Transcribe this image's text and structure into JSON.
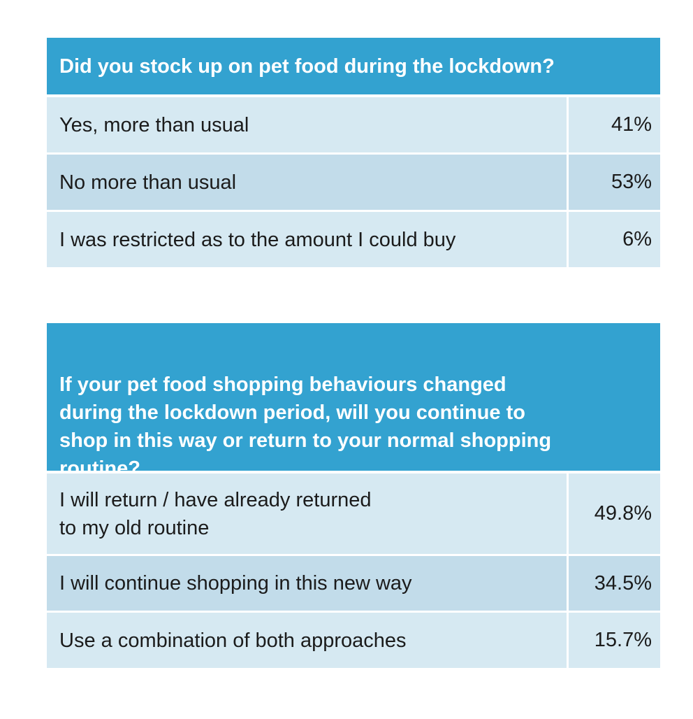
{
  "tables": [
    {
      "question": "Did you stock up on pet food during the lockdown?",
      "rows": [
        {
          "answer": "Yes, more than usual",
          "percent": "41%"
        },
        {
          "answer": "No more than usual",
          "percent": "53%"
        },
        {
          "answer": "I was restricted as to the amount I could buy",
          "percent": "6%"
        }
      ]
    },
    {
      "question": "If your pet food shopping behaviours changed during the lockdown period, will you continue to shop in this way or return to your normal shopping routine?",
      "rows": [
        {
          "answer": "I will return / have already returned\nto my old routine",
          "percent": "49.8%"
        },
        {
          "answer": "I will continue shopping in this new way",
          "percent": "34.5%"
        },
        {
          "answer": "Use a combination of both approaches",
          "percent": "15.7%"
        }
      ]
    }
  ],
  "colors": {
    "header_bg": "#33a2d0",
    "row_light": "#d6e9f2",
    "row_mid": "#c2dcea"
  }
}
